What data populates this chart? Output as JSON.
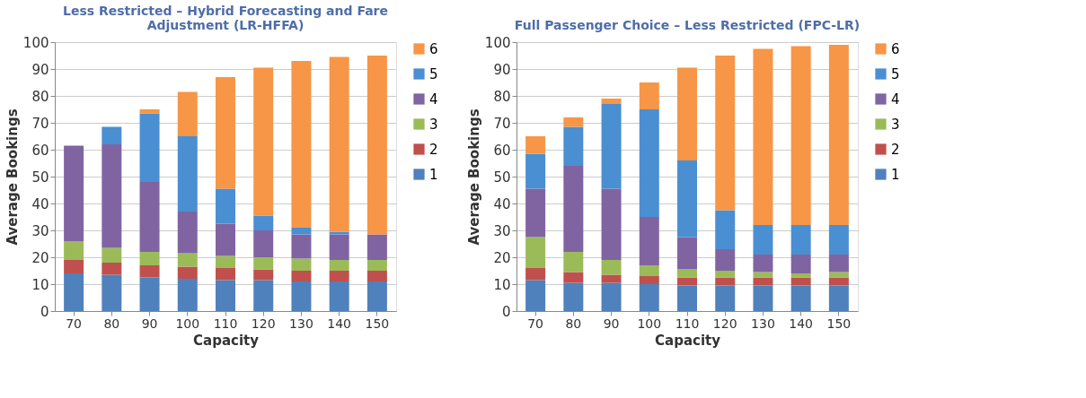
{
  "chart_data": [
    {
      "type": "bar",
      "stacked": true,
      "title": "Less Restricted – Hybrid Forecasting and Fare Adjustment (LR-HFFA)",
      "xlabel": "Capacity",
      "ylabel": "Average Bookings",
      "categories": [
        "70",
        "80",
        "90",
        "100",
        "110",
        "120",
        "130",
        "140",
        "150"
      ],
      "ylim": [
        0,
        100
      ],
      "yticks": [
        0,
        10,
        20,
        30,
        40,
        50,
        60,
        70,
        80,
        90,
        100
      ],
      "grid": "y",
      "legend": "right",
      "series": [
        {
          "name": "1",
          "color": "#4f81bd",
          "values": [
            14,
            13.5,
            12.5,
            12,
            11.5,
            11.5,
            11,
            11,
            11
          ]
        },
        {
          "name": "2",
          "color": "#c0504d",
          "values": [
            5,
            4.5,
            4.5,
            4.5,
            4.5,
            4,
            4,
            4,
            4
          ]
        },
        {
          "name": "3",
          "color": "#9bbb59",
          "values": [
            7,
            5.5,
            5,
            5,
            4.5,
            4.5,
            4.5,
            4,
            4
          ]
        },
        {
          "name": "4",
          "color": "#8064a2",
          "values": [
            35.5,
            38.5,
            26,
            15.5,
            12,
            10,
            9,
            9.5,
            9.5
          ]
        },
        {
          "name": "5",
          "color": "#4a8fd2",
          "values": [
            0,
            6.5,
            25.5,
            28,
            13,
            5.5,
            2.5,
            1,
            0
          ]
        },
        {
          "name": "6",
          "color": "#f79646",
          "values": [
            0,
            0,
            1.5,
            16.5,
            41.5,
            55,
            62,
            65,
            66.5
          ]
        }
      ]
    },
    {
      "type": "bar",
      "stacked": true,
      "title": "Full Passenger Choice – Less Restricted (FPC-LR)",
      "xlabel": "Capacity",
      "ylabel": "Average Bookings",
      "categories": [
        "70",
        "80",
        "90",
        "100",
        "110",
        "120",
        "130",
        "140",
        "150"
      ],
      "ylim": [
        0,
        100
      ],
      "yticks": [
        0,
        10,
        20,
        30,
        40,
        50,
        60,
        70,
        80,
        90,
        100
      ],
      "grid": "y",
      "legend": "right",
      "series": [
        {
          "name": "1",
          "color": "#4f81bd",
          "values": [
            11.5,
            10.5,
            10.5,
            10,
            9.5,
            9.5,
            9.5,
            9.5,
            9.5
          ]
        },
        {
          "name": "2",
          "color": "#c0504d",
          "values": [
            4.5,
            4,
            3,
            3,
            3,
            3,
            3,
            3,
            3
          ]
        },
        {
          "name": "3",
          "color": "#9bbb59",
          "values": [
            11.5,
            7.5,
            5.5,
            4,
            3,
            2.5,
            2,
            1.5,
            2
          ]
        },
        {
          "name": "4",
          "color": "#8064a2",
          "values": [
            18,
            32,
            26.5,
            18,
            12,
            8,
            6.5,
            7,
            6.5
          ]
        },
        {
          "name": "5",
          "color": "#4a8fd2",
          "values": [
            13,
            14.5,
            31.5,
            40,
            28.5,
            14.5,
            11,
            11,
            11
          ]
        },
        {
          "name": "6",
          "color": "#f79646",
          "values": [
            6.5,
            3.5,
            2,
            10,
            34.5,
            57.5,
            65.5,
            66.5,
            67
          ]
        }
      ]
    }
  ]
}
